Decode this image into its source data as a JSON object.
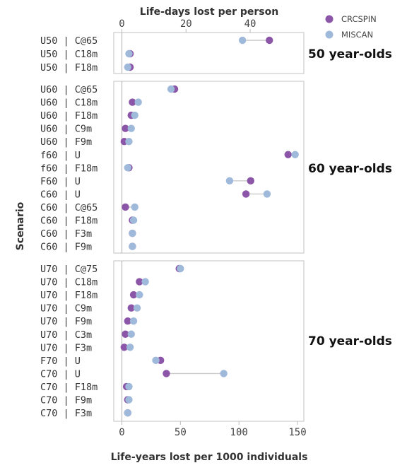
{
  "chart_data": {
    "type": "dumbbell",
    "xlabel": "Life-years lost per 1000 individuals",
    "x2label": "Life-days lost per person",
    "ylabel": "Scenario",
    "xlim": [
      -5,
      155
    ],
    "x_ticks": [
      0,
      50,
      100,
      150
    ],
    "x2_ticks": [
      0,
      20,
      40
    ],
    "legend": {
      "position": "top-right",
      "entries": [
        {
          "name": "CRCSPIN",
          "color": "#8b55a8"
        },
        {
          "name": "MISCAN",
          "color": "#9fb9db"
        }
      ]
    },
    "series_names": [
      "CRCSPIN",
      "MISCAN"
    ],
    "colors": {
      "CRCSPIN": "#8b55a8",
      "MISCAN": "#9fb9db",
      "connector": "#c9c9c9",
      "zero_line": "#bbbbbb",
      "panel_border": "#cccccc"
    },
    "facets": [
      {
        "label": "50 year-olds",
        "rows": [
          {
            "scenario": "U50 | C@65",
            "CRCSPIN": 126,
            "MISCAN": 103
          },
          {
            "scenario": "U50 | C18m",
            "CRCSPIN": 7,
            "MISCAN": 6
          },
          {
            "scenario": "U50 | F18m",
            "CRCSPIN": 7,
            "MISCAN": 5
          }
        ]
      },
      {
        "label": "60 year-olds",
        "rows": [
          {
            "scenario": "U60 | C@65",
            "CRCSPIN": 45,
            "MISCAN": 42
          },
          {
            "scenario": "U60 | C18m",
            "CRCSPIN": 9,
            "MISCAN": 14
          },
          {
            "scenario": "U60 | F18m",
            "CRCSPIN": 8,
            "MISCAN": 11
          },
          {
            "scenario": "U60 | C9m",
            "CRCSPIN": 3,
            "MISCAN": 8
          },
          {
            "scenario": "U60 | F9m",
            "CRCSPIN": 2,
            "MISCAN": 6
          },
          {
            "scenario": "f60 | U",
            "CRCSPIN": 142,
            "MISCAN": 148
          },
          {
            "scenario": "f60 | F18m",
            "CRCSPIN": 6,
            "MISCAN": 5
          },
          {
            "scenario": "F60 | U",
            "CRCSPIN": 110,
            "MISCAN": 92
          },
          {
            "scenario": "C60 | U",
            "CRCSPIN": 106,
            "MISCAN": 124
          },
          {
            "scenario": "C60 | C@65",
            "CRCSPIN": 3,
            "MISCAN": 11
          },
          {
            "scenario": "C60 | F18m",
            "CRCSPIN": 9,
            "MISCAN": 10
          },
          {
            "scenario": "C60 | F3m",
            "CRCSPIN": 9,
            "MISCAN": 9
          },
          {
            "scenario": "C60 | F9m",
            "CRCSPIN": 9,
            "MISCAN": 9
          }
        ]
      },
      {
        "label": "70 year-olds",
        "rows": [
          {
            "scenario": "U70 | C@75",
            "CRCSPIN": 49,
            "MISCAN": 50
          },
          {
            "scenario": "U70 | C18m",
            "CRCSPIN": 15,
            "MISCAN": 20
          },
          {
            "scenario": "U70 | F18m",
            "CRCSPIN": 10,
            "MISCAN": 15
          },
          {
            "scenario": "U70 | C9m",
            "CRCSPIN": 8,
            "MISCAN": 13
          },
          {
            "scenario": "U70 | F9m",
            "CRCSPIN": 5,
            "MISCAN": 10
          },
          {
            "scenario": "U70 | C3m",
            "CRCSPIN": 3,
            "MISCAN": 8
          },
          {
            "scenario": "U70 | F3m",
            "CRCSPIN": 2,
            "MISCAN": 7
          },
          {
            "scenario": "F70 | U",
            "CRCSPIN": 33,
            "MISCAN": 29
          },
          {
            "scenario": "C70 | U",
            "CRCSPIN": 38,
            "MISCAN": 87
          },
          {
            "scenario": "C70 | F18m",
            "CRCSPIN": 4,
            "MISCAN": 6
          },
          {
            "scenario": "C70 | F9m",
            "CRCSPIN": 5,
            "MISCAN": 6
          },
          {
            "scenario": "C70 | F3m",
            "CRCSPIN": 5,
            "MISCAN": 5
          }
        ]
      }
    ]
  }
}
